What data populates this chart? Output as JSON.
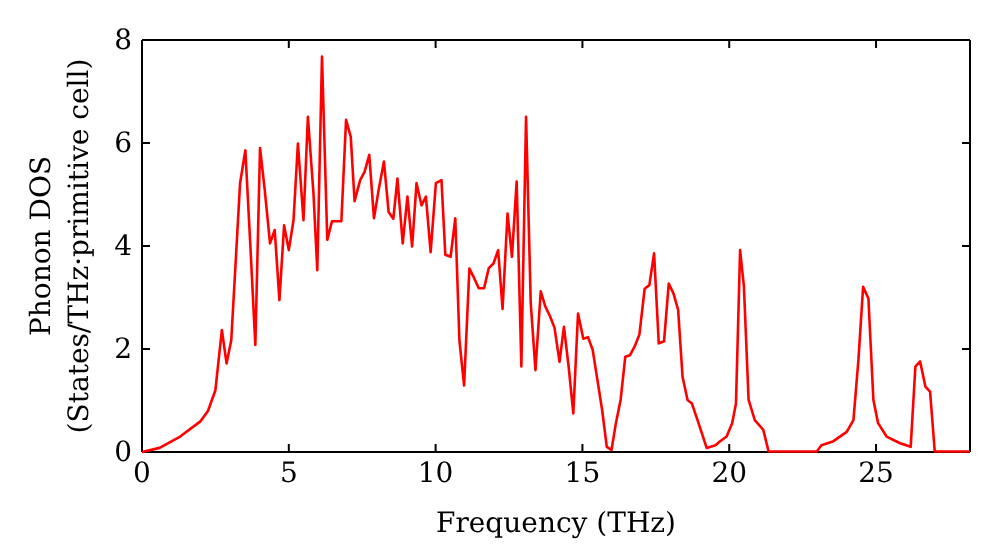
{
  "chart_data": {
    "type": "line",
    "xlabel": "Frequency (THz)",
    "ylabel": "Phonon DOS\n(States/THz·primitive cell)",
    "xlim": [
      0,
      28.2
    ],
    "ylim": [
      0,
      8
    ],
    "xticks": [
      0,
      5,
      10,
      15,
      20,
      25
    ],
    "yticks": [
      0,
      2,
      4,
      6,
      8
    ],
    "grid": false,
    "marker": "none",
    "line_style": "solid",
    "series": [
      {
        "color": "#ff0000",
        "x": [
          0,
          0.6,
          1.3,
          2.0,
          2.25,
          2.5,
          2.72,
          2.88,
          3.04,
          3.22,
          3.34,
          3.52,
          3.68,
          3.86,
          4.02,
          4.18,
          4.36,
          4.52,
          4.68,
          4.84,
          5.0,
          5.16,
          5.31,
          5.5,
          5.65,
          5.84,
          5.97,
          6.13,
          6.31,
          6.47,
          6.79,
          6.95,
          7.11,
          7.24,
          7.43,
          7.58,
          7.74,
          7.9,
          8.06,
          8.24,
          8.4,
          8.56,
          8.7,
          8.88,
          9.04,
          9.2,
          9.35,
          9.52,
          9.67,
          9.83,
          10.01,
          10.2,
          10.33,
          10.51,
          10.67,
          10.81,
          10.97,
          11.15,
          11.31,
          11.47,
          11.65,
          11.81,
          11.97,
          12.13,
          12.28,
          12.45,
          12.6,
          12.76,
          12.92,
          13.08,
          13.24,
          13.4,
          13.58,
          13.74,
          13.9,
          14.05,
          14.22,
          14.37,
          14.53,
          14.69,
          14.85,
          15.03,
          15.19,
          15.35,
          15.51,
          15.67,
          15.83,
          15.99,
          16.14,
          16.3,
          16.46,
          16.62,
          16.78,
          16.94,
          17.12,
          17.28,
          17.44,
          17.6,
          17.78,
          17.94,
          18.1,
          18.26,
          18.41,
          18.58,
          18.73,
          18.92,
          19.07,
          19.23,
          19.53,
          19.69,
          19.91,
          20.1,
          20.23,
          20.37,
          20.5,
          20.66,
          20.87,
          21.16,
          21.34,
          22.98,
          23.14,
          23.55,
          24.0,
          24.23,
          24.4,
          24.56,
          24.74,
          24.91,
          25.07,
          25.36,
          25.82,
          26.18,
          26.34,
          26.5,
          26.68,
          26.84,
          27.0,
          28.2
        ],
        "values": [
          0,
          0.08,
          0.3,
          0.6,
          0.8,
          1.2,
          2.37,
          1.72,
          2.17,
          3.99,
          5.22,
          5.86,
          4.12,
          2.08,
          5.9,
          5.09,
          4.05,
          4.31,
          2.95,
          4.4,
          3.92,
          4.5,
          5.99,
          4.5,
          6.51,
          5.02,
          3.53,
          7.68,
          4.12,
          4.48,
          4.48,
          6.45,
          6.12,
          4.87,
          5.28,
          5.44,
          5.77,
          4.54,
          5.09,
          5.64,
          4.66,
          4.53,
          5.31,
          4.05,
          4.96,
          3.99,
          5.22,
          4.79,
          4.96,
          3.88,
          5.22,
          5.28,
          3.83,
          3.79,
          4.54,
          2.17,
          1.29,
          3.56,
          3.38,
          3.18,
          3.18,
          3.57,
          3.66,
          3.92,
          2.78,
          4.63,
          3.79,
          5.25,
          1.66,
          6.51,
          2.89,
          1.59,
          3.12,
          2.82,
          2.63,
          2.41,
          1.75,
          2.43,
          1.66,
          0.75,
          2.69,
          2.2,
          2.23,
          1.98,
          1.4,
          0.82,
          0.1,
          0.04,
          0.56,
          1.01,
          1.85,
          1.88,
          2.05,
          2.28,
          3.17,
          3.24,
          3.86,
          2.11,
          2.15,
          3.27,
          3.08,
          2.76,
          1.46,
          1.01,
          0.94,
          0.62,
          0.36,
          0.08,
          0.13,
          0.21,
          0.3,
          0.56,
          0.94,
          3.92,
          3.21,
          1.01,
          0.62,
          0.43,
          0.01,
          0.01,
          0.13,
          0.21,
          0.39,
          0.62,
          1.79,
          3.21,
          2.98,
          1.01,
          0.56,
          0.3,
          0.17,
          0.1,
          1.66,
          1.76,
          1.27,
          1.17,
          0.01,
          0.01
        ]
      }
    ]
  }
}
